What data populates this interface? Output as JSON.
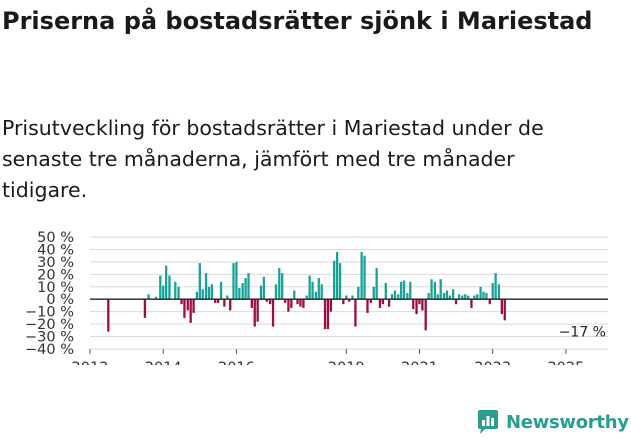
{
  "title": "Priserna på bostadsrätter sjönk i Mariestad",
  "subtitle": "Prisutveckling för bostadsrätter i Mariestad under de senaste tre månaderna, jämfört med tre månader tidigare.",
  "brand": "Newsworthy",
  "colors": {
    "positive": "#17a398",
    "negative": "#9b0d45",
    "grid": "#d9d9d9",
    "zero": "#222222",
    "brand": "#2a9d8f"
  },
  "chart_data": {
    "type": "bar",
    "title": "",
    "xlabel": "",
    "ylabel": "",
    "ylim": [
      -40,
      50
    ],
    "xlim": [
      2012.0,
      2026.15
    ],
    "y_ticks": [
      50,
      40,
      30,
      20,
      10,
      0,
      -10,
      -20,
      -30,
      -40
    ],
    "y_tick_labels": [
      "50 %",
      "40 %",
      "30 %",
      "20 %",
      "10 %",
      "0 %",
      "−10 %",
      "−20 %",
      "−30 %",
      "−40 %"
    ],
    "x_ticks": [
      2012,
      2014,
      2016,
      2019,
      2021,
      2023,
      2025
    ],
    "x_tick_labels": [
      "2012",
      "2014",
      "2016",
      "2019",
      "2021",
      "2023",
      "2025"
    ],
    "last_value_label": "−17 %",
    "series": [
      {
        "name": "Prisutveckling",
        "points": [
          [
            2012.5,
            -26
          ],
          [
            2013.5,
            -15
          ],
          [
            2013.6,
            4
          ],
          [
            2013.8,
            2
          ],
          [
            2013.92,
            19
          ],
          [
            2014.0,
            11
          ],
          [
            2014.08,
            27
          ],
          [
            2014.17,
            19
          ],
          [
            2014.33,
            14
          ],
          [
            2014.42,
            10
          ],
          [
            2014.5,
            -4
          ],
          [
            2014.58,
            -15
          ],
          [
            2014.67,
            -9
          ],
          [
            2014.75,
            -19
          ],
          [
            2014.83,
            -11
          ],
          [
            2014.92,
            6
          ],
          [
            2015.0,
            29
          ],
          [
            2015.08,
            8
          ],
          [
            2015.17,
            21
          ],
          [
            2015.25,
            10
          ],
          [
            2015.33,
            12
          ],
          [
            2015.42,
            -3
          ],
          [
            2015.5,
            -3
          ],
          [
            2015.58,
            14
          ],
          [
            2015.67,
            -6
          ],
          [
            2015.75,
            3
          ],
          [
            2015.83,
            -9
          ],
          [
            2015.92,
            29
          ],
          [
            2016.0,
            30
          ],
          [
            2016.08,
            9
          ],
          [
            2016.17,
            13
          ],
          [
            2016.25,
            17
          ],
          [
            2016.33,
            21
          ],
          [
            2016.42,
            -7
          ],
          [
            2016.5,
            -22
          ],
          [
            2016.58,
            -18
          ],
          [
            2016.67,
            11
          ],
          [
            2016.75,
            18
          ],
          [
            2016.83,
            -2
          ],
          [
            2016.92,
            -4
          ],
          [
            2017.0,
            -22
          ],
          [
            2017.08,
            12
          ],
          [
            2017.17,
            25
          ],
          [
            2017.25,
            21
          ],
          [
            2017.33,
            -3
          ],
          [
            2017.42,
            -10
          ],
          [
            2017.5,
            -7
          ],
          [
            2017.58,
            7
          ],
          [
            2017.67,
            -4
          ],
          [
            2017.75,
            -6
          ],
          [
            2017.83,
            -7
          ],
          [
            2017.92,
            3
          ],
          [
            2018.0,
            19
          ],
          [
            2018.08,
            14
          ],
          [
            2018.17,
            6
          ],
          [
            2018.25,
            17
          ],
          [
            2018.33,
            12
          ],
          [
            2018.42,
            -24
          ],
          [
            2018.5,
            -24
          ],
          [
            2018.58,
            -10
          ],
          [
            2018.67,
            31
          ],
          [
            2018.75,
            38
          ],
          [
            2018.83,
            29
          ],
          [
            2018.92,
            -4
          ],
          [
            2019.0,
            3
          ],
          [
            2019.08,
            -2
          ],
          [
            2019.17,
            3
          ],
          [
            2019.25,
            -22
          ],
          [
            2019.33,
            10
          ],
          [
            2019.42,
            38
          ],
          [
            2019.5,
            35
          ],
          [
            2019.58,
            -11
          ],
          [
            2019.67,
            -3
          ],
          [
            2019.75,
            10
          ],
          [
            2019.83,
            25
          ],
          [
            2019.92,
            -7
          ],
          [
            2020.0,
            -4
          ],
          [
            2020.08,
            13
          ],
          [
            2020.17,
            -6
          ],
          [
            2020.25,
            4
          ],
          [
            2020.33,
            7
          ],
          [
            2020.42,
            4
          ],
          [
            2020.5,
            14
          ],
          [
            2020.58,
            15
          ],
          [
            2020.67,
            5
          ],
          [
            2020.75,
            14
          ],
          [
            2020.83,
            -8
          ],
          [
            2020.92,
            -12
          ],
          [
            2021.0,
            -4
          ],
          [
            2021.08,
            -9
          ],
          [
            2021.17,
            -25
          ],
          [
            2021.25,
            5
          ],
          [
            2021.33,
            16
          ],
          [
            2021.42,
            14
          ],
          [
            2021.5,
            4
          ],
          [
            2021.58,
            16
          ],
          [
            2021.67,
            5
          ],
          [
            2021.75,
            7
          ],
          [
            2021.83,
            3
          ],
          [
            2021.92,
            8
          ],
          [
            2022.0,
            -4
          ],
          [
            2022.08,
            4
          ],
          [
            2022.17,
            3
          ],
          [
            2022.25,
            4
          ],
          [
            2022.33,
            3
          ],
          [
            2022.42,
            -7
          ],
          [
            2022.5,
            3
          ],
          [
            2022.58,
            4
          ],
          [
            2022.67,
            10
          ],
          [
            2022.75,
            6
          ],
          [
            2022.83,
            5
          ],
          [
            2022.92,
            -4
          ],
          [
            2023.0,
            13
          ],
          [
            2023.08,
            21
          ],
          [
            2023.17,
            12
          ],
          [
            2023.25,
            -12
          ],
          [
            2023.33,
            -17
          ]
        ]
      }
    ]
  }
}
